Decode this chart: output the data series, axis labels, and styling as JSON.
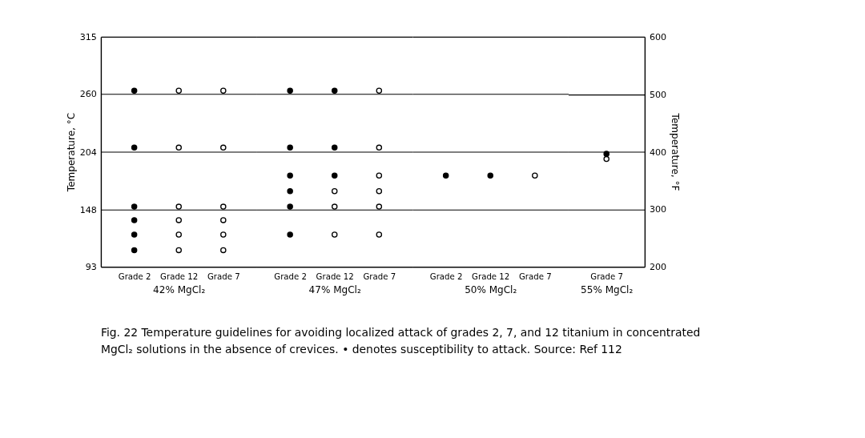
{
  "chart_data": [
    {
      "type": "scatter",
      "categories": [
        "Grade 2",
        "Grade 12",
        "Grade 7"
      ],
      "xlabel": "42% MgCl₂",
      "ylabel": "Temperature, °C",
      "ylim": [
        93,
        315
      ],
      "yticks": [
        93,
        148,
        204,
        260,
        315
      ],
      "grid": "y",
      "marker": "circle",
      "series": [
        {
          "color": "#000000",
          "x": [
            "Grade 2",
            "Grade 2",
            "Grade 2",
            "Grade 2",
            "Grade 2",
            "Grade 2"
          ],
          "values": [
            263,
            208,
            151,
            138,
            124,
            109
          ]
        },
        {
          "color": "#ffffff",
          "x": [
            "Grade 12",
            "Grade 12",
            "Grade 12",
            "Grade 12",
            "Grade 12",
            "Grade 12",
            "Grade 7",
            "Grade 7",
            "Grade 7",
            "Grade 7",
            "Grade 7",
            "Grade 7"
          ],
          "values": [
            263,
            208,
            151,
            138,
            124,
            109,
            263,
            208,
            151,
            138,
            124,
            109
          ]
        }
      ],
      "annotations": [
        "Fig. 22 Temperature guidelines for avoiding localized attack of grades 2, 7, and 12 titanium in concentrated",
        "MgCl₂ solutions in the absence of crevices. • denotes susceptibility to attack. Source: Ref 112"
      ]
    },
    {
      "type": "scatter",
      "categories": [
        "Grade 2",
        "Grade 12",
        "Grade 7"
      ],
      "xlabel": "47% MgCl₂",
      "ylim": [
        93,
        315
      ],
      "yticks": [
        93,
        148,
        204,
        260,
        315
      ],
      "grid": "y",
      "marker": "circle",
      "tick_labels": "x",
      "series": [
        {
          "color": "#000000",
          "x": [
            "Grade 2",
            "Grade 2",
            "Grade 2",
            "Grade 2",
            "Grade 2",
            "Grade 2",
            "Grade 12",
            "Grade 12",
            "Grade 12"
          ],
          "values": [
            263,
            208,
            181,
            166,
            151,
            124,
            263,
            208,
            181
          ]
        },
        {
          "color": "#ffffff",
          "x": [
            "Grade 12",
            "Grade 12",
            "Grade 12",
            "Grade 7",
            "Grade 7",
            "Grade 7",
            "Grade 7",
            "Grade 7",
            "Grade 7"
          ],
          "values": [
            166,
            151,
            124,
            263,
            208,
            181,
            166,
            151,
            124
          ]
        }
      ]
    },
    {
      "type": "scatter",
      "categories": [
        "Grade 2",
        "Grade 12",
        "Grade 7"
      ],
      "xlabel": "50% MgCl₂",
      "ylim": [
        93,
        315
      ],
      "yticks": [
        93,
        148,
        204,
        260,
        315
      ],
      "grid": "y",
      "marker": "circle",
      "tick_labels": "x",
      "series": [
        {
          "color": "#000000",
          "x": [
            "Grade 2",
            "Grade 12"
          ],
          "values": [
            181,
            181
          ]
        },
        {
          "color": "#ffffff",
          "x": [
            "Grade 7"
          ],
          "values": [
            181
          ]
        }
      ]
    },
    {
      "type": "scatter",
      "categories": [
        "Grade 7"
      ],
      "xlabel": "55% MgCl₂",
      "ylim": [
        93,
        315
      ],
      "grid": "y",
      "marker": "circle",
      "tick_labels": [
        "x",
        "y2"
      ],
      "y2label": "Temperature, °F",
      "y2lim": [
        200,
        600
      ],
      "y2ticks": [
        200,
        300,
        400,
        500,
        600
      ],
      "series": [
        {
          "color": "#000000",
          "x": [
            "Grade 7"
          ],
          "values": [
            202
          ]
        },
        {
          "color": "#ffffff",
          "x": [
            "Grade 7"
          ],
          "values": [
            197
          ]
        }
      ]
    }
  ]
}
